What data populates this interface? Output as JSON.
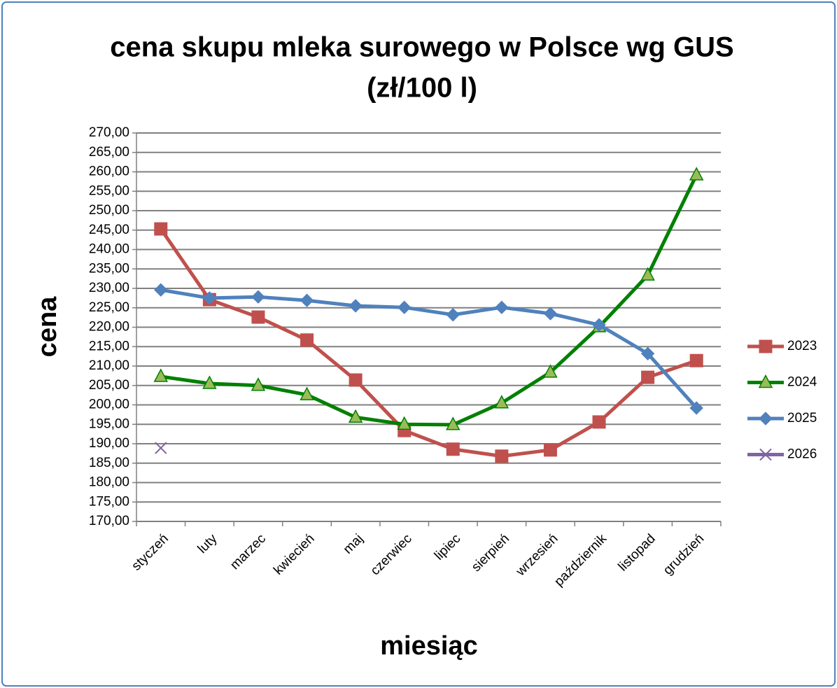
{
  "chart_data": {
    "type": "line",
    "title": "cena skupu mleka surowego w Polsce  wg GUS",
    "subtitle": "(zł/100 l)",
    "x_label": "miesiąc",
    "y_label": "cena",
    "categories": [
      "styczeń",
      "luty",
      "marzec",
      "kwiecień",
      "maj",
      "czerwiec",
      "lipiec",
      "sierpień",
      "wrzesień",
      "październik",
      "listopad",
      "grudzień"
    ],
    "series": [
      {
        "name": "2023",
        "color": "#c0504d",
        "marker": "square",
        "marker_color": "#c0504d",
        "values": [
          245.3,
          227.1,
          222.6,
          216.7,
          206.4,
          193.4,
          188.6,
          186.8,
          188.4,
          195.6,
          207.1,
          211.4
        ]
      },
      {
        "name": "2024",
        "color": "#008000",
        "marker": "triangle",
        "marker_color": "#9bbb59",
        "values": [
          207.3,
          205.5,
          205.0,
          202.6,
          196.8,
          195.0,
          194.9,
          200.5,
          208.4,
          220.1,
          233.4,
          259.2
        ]
      },
      {
        "name": "2025",
        "color": "#4f81bd",
        "marker": "diamond",
        "marker_color": "#4f81bd",
        "values": [
          229.6,
          227.5,
          227.8,
          226.9,
          225.5,
          225.1,
          223.2,
          225.1,
          223.5,
          220.6,
          213.2,
          199.2
        ]
      },
      {
        "name": "2026",
        "color": "#8064a2",
        "marker": "x",
        "marker_color": "#8064a2",
        "values": [
          188.9,
          null,
          null,
          null,
          null,
          null,
          null,
          null,
          null,
          null,
          null,
          null
        ]
      }
    ],
    "ylim": [
      170,
      270
    ],
    "yticks": [
      {
        "value": 170,
        "label": "170,00"
      },
      {
        "value": 175,
        "label": "175,00"
      },
      {
        "value": 180,
        "label": "180,00"
      },
      {
        "value": 185,
        "label": "185,00"
      },
      {
        "value": 190,
        "label": "190,00"
      },
      {
        "value": 195,
        "label": "195,00"
      },
      {
        "value": 200,
        "label": "200,00"
      },
      {
        "value": 205,
        "label": "205,00"
      },
      {
        "value": 210,
        "label": "210,00"
      },
      {
        "value": 215,
        "label": "215,00"
      },
      {
        "value": 220,
        "label": "220,00"
      },
      {
        "value": 225,
        "label": "225,00"
      },
      {
        "value": 230,
        "label": "230,00"
      },
      {
        "value": 235,
        "label": "235,00"
      },
      {
        "value": 240,
        "label": "240,00"
      },
      {
        "value": 245,
        "label": "245,00"
      },
      {
        "value": 250,
        "label": "250,00"
      },
      {
        "value": 255,
        "label": "255,00"
      },
      {
        "value": 260,
        "label": "260,00"
      },
      {
        "value": 265,
        "label": "265,00"
      },
      {
        "value": 270,
        "label": "270,00"
      }
    ],
    "grid": true,
    "legend": "right"
  }
}
